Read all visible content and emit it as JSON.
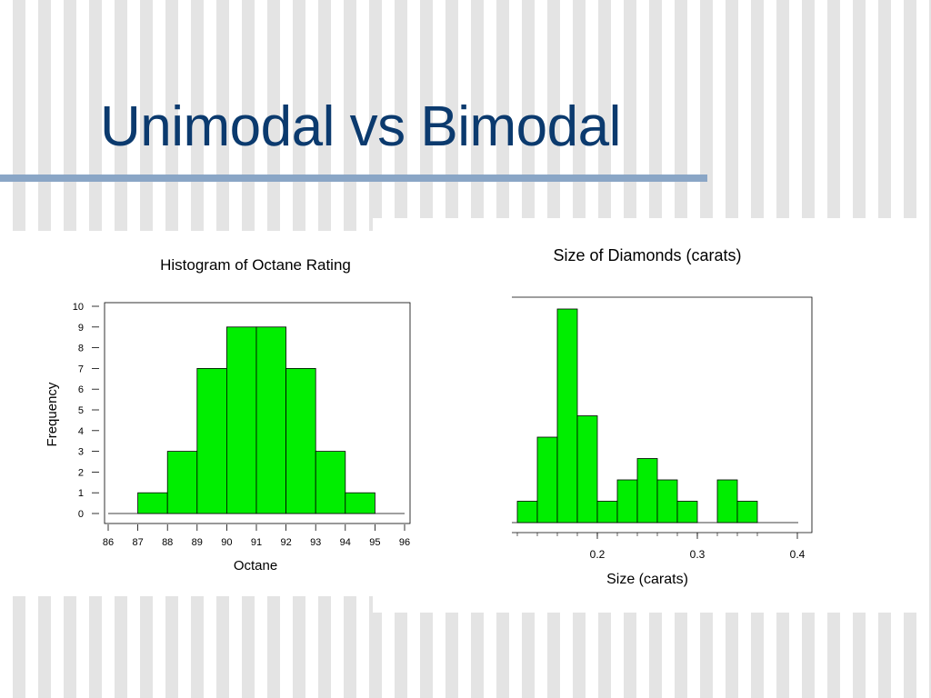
{
  "slide": {
    "title": "Unimodal vs Bimodal"
  },
  "colors": {
    "title": "#0b3a6e",
    "rule": "#8aa6c6",
    "bar_fill": "#00ee00",
    "bar_stroke": "#000000"
  },
  "chart_data": [
    {
      "type": "bar",
      "title": "Histogram of Octane Rating",
      "xlabel": "Octane",
      "ylabel": "Frequency",
      "x_ticks": [
        "86",
        "87",
        "88",
        "89",
        "90",
        "91",
        "92",
        "93",
        "94",
        "95",
        "96"
      ],
      "y_ticks": [
        "0",
        "1",
        "2",
        "3",
        "4",
        "5",
        "6",
        "7",
        "8",
        "9",
        "10"
      ],
      "xlim": [
        86,
        96
      ],
      "ylim": [
        0,
        10
      ],
      "bins": [
        {
          "from": 87,
          "to": 88,
          "value": 1
        },
        {
          "from": 88,
          "to": 89,
          "value": 3
        },
        {
          "from": 89,
          "to": 90,
          "value": 7
        },
        {
          "from": 90,
          "to": 91,
          "value": 9
        },
        {
          "from": 91,
          "to": 92,
          "value": 9
        },
        {
          "from": 92,
          "to": 93,
          "value": 7
        },
        {
          "from": 93,
          "to": 94,
          "value": 3
        },
        {
          "from": 94,
          "to": 95,
          "value": 1
        }
      ],
      "grid": false
    },
    {
      "type": "bar",
      "title": "Size of Diamonds (carats)",
      "xlabel": "Size (carats)",
      "ylabel": "",
      "x_ticks": [
        "0.2",
        "0.3",
        "0.4"
      ],
      "xlim": [
        0.12,
        0.4
      ],
      "ylim": [
        0,
        10
      ],
      "bins": [
        {
          "from": 0.12,
          "to": 0.14,
          "value": 1
        },
        {
          "from": 0.14,
          "to": 0.16,
          "value": 4
        },
        {
          "from": 0.16,
          "to": 0.18,
          "value": 10
        },
        {
          "from": 0.18,
          "to": 0.2,
          "value": 5
        },
        {
          "from": 0.2,
          "to": 0.22,
          "value": 1
        },
        {
          "from": 0.22,
          "to": 0.24,
          "value": 2
        },
        {
          "from": 0.24,
          "to": 0.26,
          "value": 3
        },
        {
          "from": 0.26,
          "to": 0.28,
          "value": 2
        },
        {
          "from": 0.28,
          "to": 0.3,
          "value": 1
        },
        {
          "from": 0.3,
          "to": 0.32,
          "value": 0
        },
        {
          "from": 0.32,
          "to": 0.34,
          "value": 2
        },
        {
          "from": 0.34,
          "to": 0.36,
          "value": 1
        }
      ],
      "grid": false
    }
  ]
}
